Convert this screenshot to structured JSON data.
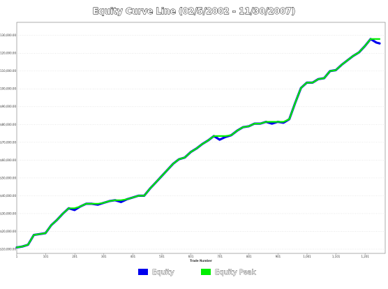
{
  "chart_data": {
    "type": "line",
    "title": "Equity Curve Line (02/5/2002 - 11/30/2007)",
    "xlabel": "Trade Number",
    "ylabel": "",
    "xlim": [
      1,
      1251
    ],
    "ylim": [
      10000,
      135000
    ],
    "x_ticks": [
      "1",
      "101",
      "201",
      "301",
      "401",
      "501",
      "601",
      "701",
      "801",
      "901",
      "1,001",
      "1,101",
      "1,201"
    ],
    "y_ticks": [
      "$10,000.00",
      "$20,000.00",
      "$30,000.00",
      "$40,000.00",
      "$50,000.00",
      "$60,000.00",
      "$70,000.00",
      "$80,000.00",
      "$90,000.00",
      "$100,000.00",
      "$110,000.00",
      "$120,000.00",
      "$130,000.00"
    ],
    "grid": true,
    "legend_position": "bottom-center",
    "series": [
      {
        "name": "Equity",
        "color": "#0000ee",
        "x": [
          1,
          20,
          40,
          60,
          80,
          100,
          120,
          140,
          160,
          180,
          200,
          220,
          240,
          260,
          280,
          300,
          320,
          340,
          360,
          380,
          400,
          420,
          440,
          460,
          480,
          500,
          520,
          540,
          560,
          580,
          600,
          620,
          640,
          660,
          680,
          700,
          720,
          740,
          760,
          780,
          800,
          820,
          840,
          860,
          880,
          900,
          920,
          940,
          960,
          980,
          1000,
          1020,
          1040,
          1060,
          1080,
          1100,
          1120,
          1140,
          1160,
          1180,
          1200,
          1220,
          1240,
          1251
        ],
        "y": [
          11000,
          11500,
          12500,
          18000,
          18500,
          19000,
          23500,
          26500,
          30000,
          33000,
          32000,
          34000,
          35500,
          35500,
          35000,
          36000,
          37000,
          37500,
          36500,
          38000,
          39000,
          40000,
          40000,
          44000,
          47500,
          51000,
          54500,
          58000,
          60500,
          61500,
          64500,
          66500,
          69000,
          71000,
          73500,
          71500,
          73000,
          74000,
          76500,
          78500,
          79000,
          80500,
          80500,
          81500,
          80500,
          81500,
          81000,
          83000,
          92000,
          100500,
          103500,
          103500,
          105500,
          106000,
          110000,
          110500,
          113500,
          116000,
          118500,
          120500,
          124000,
          128000,
          126000,
          125500
        ]
      },
      {
        "name": "Equity Peak",
        "color": "#00ee00",
        "x": [
          1,
          20,
          40,
          60,
          80,
          100,
          120,
          140,
          160,
          180,
          200,
          220,
          240,
          260,
          280,
          300,
          320,
          340,
          360,
          380,
          400,
          420,
          440,
          460,
          480,
          500,
          520,
          540,
          560,
          580,
          600,
          620,
          640,
          660,
          680,
          700,
          720,
          740,
          760,
          780,
          800,
          820,
          840,
          860,
          880,
          900,
          920,
          940,
          960,
          980,
          1000,
          1020,
          1040,
          1060,
          1080,
          1100,
          1120,
          1140,
          1160,
          1180,
          1200,
          1220,
          1240,
          1251
        ],
        "y": [
          11000,
          11500,
          12500,
          18000,
          18500,
          19000,
          23500,
          26500,
          30000,
          33000,
          33000,
          34000,
          35500,
          35500,
          35500,
          36000,
          37000,
          37500,
          37500,
          38000,
          39000,
          40000,
          40000,
          44000,
          47500,
          51000,
          54500,
          58000,
          60500,
          61500,
          64500,
          66500,
          69000,
          71000,
          73500,
          73500,
          73500,
          74000,
          76500,
          78500,
          79000,
          80500,
          80500,
          81500,
          81500,
          81500,
          81500,
          83000,
          92000,
          100500,
          103500,
          103500,
          105500,
          106000,
          110000,
          110500,
          113500,
          116000,
          118500,
          120500,
          124000,
          128000,
          128000,
          128000
        ]
      }
    ]
  }
}
